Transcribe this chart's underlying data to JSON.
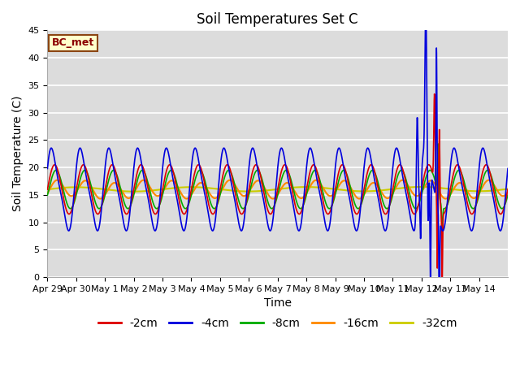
{
  "title": "Soil Temperatures Set C",
  "xlabel": "Time",
  "ylabel": "Soil Temperature (C)",
  "ylim": [
    0,
    45
  ],
  "yticks": [
    0,
    5,
    10,
    15,
    20,
    25,
    30,
    35,
    40,
    45
  ],
  "annotation": "BC_met",
  "series_labels": [
    "-2cm",
    "-4cm",
    "-8cm",
    "-16cm",
    "-32cm"
  ],
  "series_colors": [
    "#dd0000",
    "#0000dd",
    "#00aa00",
    "#ff8800",
    "#cccc00"
  ],
  "background_color": "#dcdcdc",
  "title_fontsize": 12,
  "axis_label_fontsize": 10,
  "tick_label_fontsize": 8,
  "legend_fontsize": 10,
  "tick_labels": [
    "Apr 29",
    "Apr 30",
    "May 1",
    "May 2",
    "May 3",
    "May 4",
    "May 5",
    "May 6",
    "May 7",
    "May 8",
    "May 9",
    "May 10",
    "May 11",
    "May 12",
    "May 13",
    "May 14"
  ]
}
